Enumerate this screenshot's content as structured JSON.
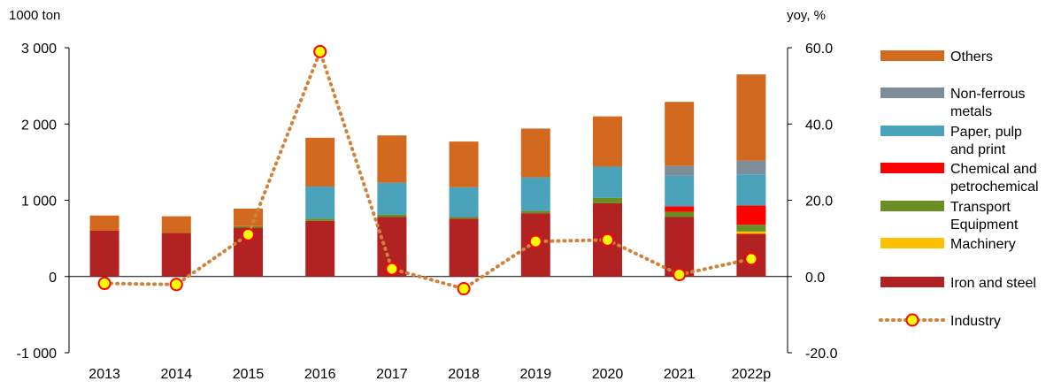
{
  "chart_data": {
    "type": "bar",
    "stacked": true,
    "left_axis_label": "1000 ton",
    "right_axis_label": "yoy, %",
    "left_ticks": [
      "3 000",
      "2 000",
      "1 000",
      "0",
      "-1 000"
    ],
    "left_tick_values": [
      3000,
      2000,
      1000,
      0,
      -1000
    ],
    "right_ticks": [
      "60.0",
      "40.0",
      "20.0",
      "0.0",
      "-20.0"
    ],
    "right_tick_values": [
      60,
      40,
      20,
      0,
      -20
    ],
    "ylim_left": [
      -1000,
      3000
    ],
    "ylim_right": [
      -20,
      60
    ],
    "legend_position": "right",
    "grid": false,
    "categories": [
      "2013",
      "2014",
      "2015",
      "2016",
      "2017",
      "2018",
      "2019",
      "2020",
      "2021",
      "2022p"
    ],
    "series": [
      {
        "name": "Iron and steel",
        "color": "#B22222",
        "values": [
          600,
          570,
          640,
          730,
          780,
          760,
          830,
          960,
          780,
          560
        ]
      },
      {
        "name": "Machinery",
        "color": "#FFC000",
        "values": [
          0,
          0,
          0,
          0,
          0,
          0,
          0,
          0,
          0,
          30
        ]
      },
      {
        "name": "Transport Equipment",
        "color": "#6B8E23",
        "values": [
          0,
          0,
          20,
          30,
          30,
          20,
          30,
          70,
          70,
          90
        ]
      },
      {
        "name": "Chemical and petrochemical",
        "color": "#FF0000",
        "values": [
          0,
          0,
          0,
          0,
          0,
          0,
          0,
          0,
          70,
          250
        ]
      },
      {
        "name": "Paper, pulp and print",
        "color": "#4AA3BA",
        "values": [
          0,
          0,
          0,
          420,
          420,
          390,
          440,
          410,
          400,
          410
        ]
      },
      {
        "name": "Non-ferrous metals",
        "color": "#7F8C99",
        "values": [
          0,
          0,
          0,
          0,
          0,
          0,
          0,
          0,
          130,
          180
        ]
      },
      {
        "name": "Others",
        "color": "#D2691E",
        "values": [
          200,
          220,
          230,
          640,
          620,
          600,
          640,
          660,
          840,
          1130
        ]
      }
    ],
    "line_series": {
      "name": "Industry",
      "axis": "right",
      "line_color": "#D2803A",
      "marker_fill": "#FFFF00",
      "marker_edge": "#FF0000",
      "values": [
        -1.8,
        -2.1,
        11.0,
        59.0,
        2.0,
        -3.2,
        9.2,
        9.6,
        0.5,
        4.6
      ]
    },
    "legend": [
      {
        "label": "Others",
        "kind": "bar",
        "color": "#D2691E"
      },
      {
        "label": "Non-ferrous metals",
        "kind": "bar",
        "color": "#7F8C99"
      },
      {
        "label": "Paper, pulp and print",
        "kind": "bar",
        "color": "#4AA3BA"
      },
      {
        "label": "Chemical and petrochemical",
        "kind": "bar",
        "color": "#FF0000"
      },
      {
        "label": "Transport Equipment",
        "kind": "bar",
        "color": "#6B8E23"
      },
      {
        "label": "Machinery",
        "kind": "bar",
        "color": "#FFC000"
      },
      {
        "label": "Iron and steel",
        "kind": "bar",
        "color": "#B22222"
      },
      {
        "label": "Industry",
        "kind": "line",
        "color": "#D2803A"
      }
    ]
  }
}
